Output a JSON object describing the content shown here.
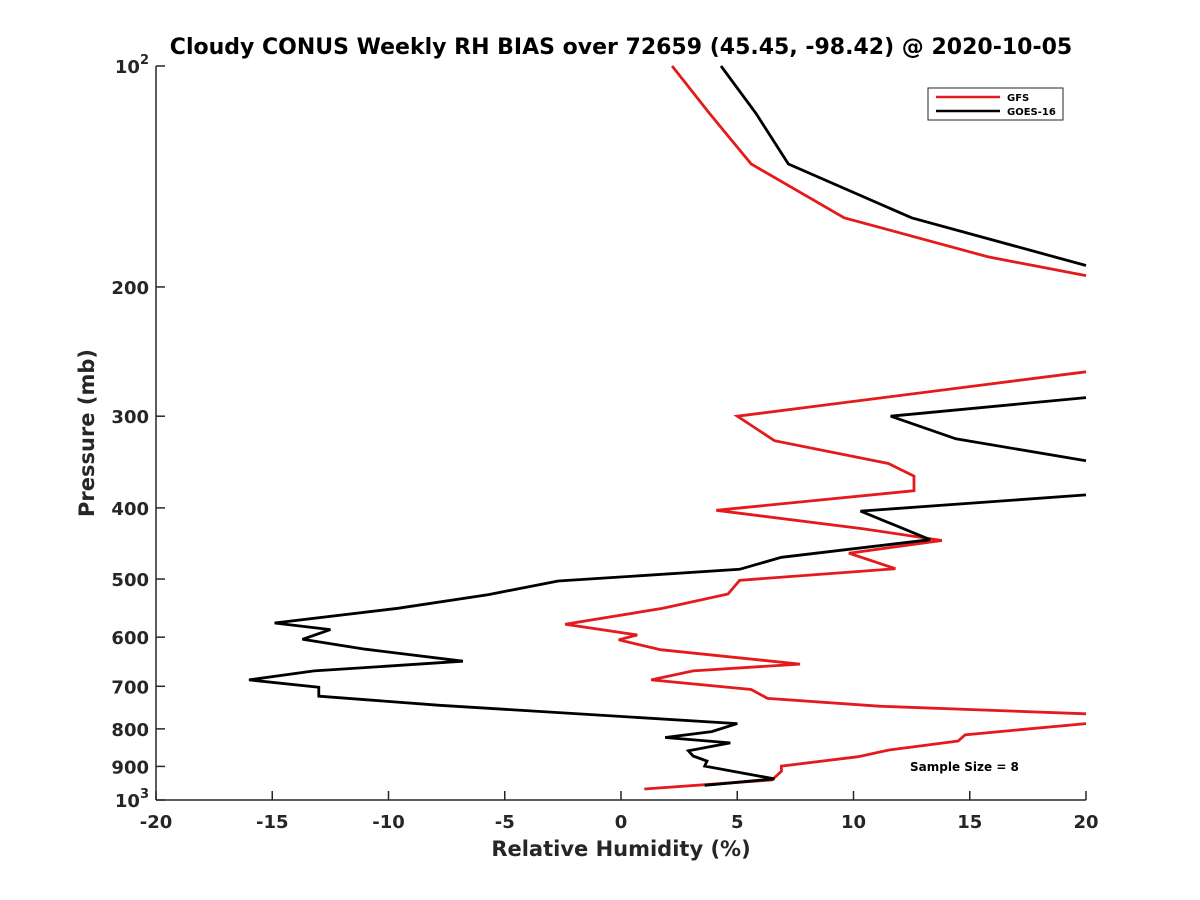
{
  "chart_data": {
    "type": "line",
    "title": "Cloudy CONUS Weekly RH BIAS over 72659 (45.45, -98.42) @ 2020-10-05",
    "xlabel": "Relative Humidity (%)",
    "ylabel": "Pressure (mb)",
    "xlim": [
      -20,
      20
    ],
    "ylim": [
      100,
      1000
    ],
    "y_scale": "log",
    "y_reversed": true,
    "grid": false,
    "legend_position": "top-right",
    "x_ticks": [
      -20,
      -15,
      -10,
      -5,
      0,
      5,
      10,
      15,
      20
    ],
    "x_tick_labels": [
      "-20",
      "-15",
      "-10",
      "-5",
      "0",
      "5",
      "10",
      "15",
      "20"
    ],
    "y_ticks": [
      {
        "value": 100,
        "base": "10",
        "exp": "2"
      },
      {
        "value": 200,
        "base": "200",
        "exp": ""
      },
      {
        "value": 300,
        "base": "300",
        "exp": ""
      },
      {
        "value": 400,
        "base": "400",
        "exp": ""
      },
      {
        "value": 500,
        "base": "500",
        "exp": ""
      },
      {
        "value": 600,
        "base": "600",
        "exp": ""
      },
      {
        "value": 700,
        "base": "700",
        "exp": ""
      },
      {
        "value": 800,
        "base": "800",
        "exp": ""
      },
      {
        "value": 900,
        "base": "900",
        "exp": ""
      },
      {
        "value": 1000,
        "base": "10",
        "exp": "3"
      }
    ],
    "annotation": "Sample Size = 8",
    "series": [
      {
        "name": "GFS",
        "color": "#e41a1c",
        "points": [
          [
            2.2,
            100
          ],
          [
            3.8,
            116
          ],
          [
            5.6,
            136
          ],
          [
            9.6,
            161
          ],
          [
            15.8,
            182
          ],
          [
            20,
            193
          ],
          [
            null,
            null
          ],
          [
            20,
            261
          ],
          [
            5.0,
            300
          ],
          [
            6.6,
            324
          ],
          [
            11.5,
            348
          ],
          [
            12.6,
            362
          ],
          [
            12.6,
            379
          ],
          [
            4.1,
            403
          ],
          [
            10.4,
            427
          ],
          [
            13.8,
            443
          ],
          [
            9.8,
            461
          ],
          [
            11.8,
            484
          ],
          [
            5.1,
            502
          ],
          [
            4.6,
            524
          ],
          [
            1.8,
            548
          ],
          [
            -2.4,
            576
          ],
          [
            0.7,
            596
          ],
          [
            -0.1,
            605
          ],
          [
            1.7,
            624
          ],
          [
            7.7,
            653
          ],
          [
            3.1,
            667
          ],
          [
            1.3,
            686
          ],
          [
            5.6,
            707
          ],
          [
            6.3,
            727
          ],
          [
            11.1,
            745
          ],
          [
            20,
            763
          ],
          [
            null,
            null
          ],
          [
            20,
            787
          ],
          [
            14.8,
            815
          ],
          [
            14.5,
            831
          ],
          [
            11.5,
            855
          ],
          [
            10.2,
            873
          ],
          [
            6.9,
            899
          ],
          [
            6.9,
            914
          ],
          [
            6.5,
            939
          ],
          [
            1.0,
            966
          ]
        ]
      },
      {
        "name": "GOES-16",
        "color": "#000000",
        "points": [
          [
            4.3,
            100
          ],
          [
            5.8,
            116
          ],
          [
            7.2,
            136
          ],
          [
            12.5,
            161
          ],
          [
            20,
            187
          ],
          [
            null,
            null
          ],
          [
            20,
            283
          ],
          [
            11.6,
            300
          ],
          [
            14.4,
            322
          ],
          [
            20,
            345
          ],
          [
            null,
            null
          ],
          [
            20,
            384
          ],
          [
            10.3,
            404
          ],
          [
            13.3,
            442
          ],
          [
            6.9,
            467
          ],
          [
            5.1,
            485
          ],
          [
            -2.7,
            503
          ],
          [
            -5.7,
            525
          ],
          [
            -9.6,
            548
          ],
          [
            -14.9,
            574
          ],
          [
            -12.5,
            586
          ],
          [
            -13.7,
            604
          ],
          [
            -11.0,
            623
          ],
          [
            -6.8,
            647
          ],
          [
            -13.2,
            667
          ],
          [
            -16.0,
            686
          ],
          [
            -13.0,
            702
          ],
          [
            -13.0,
            722
          ],
          [
            -7.8,
            743
          ],
          [
            5.0,
            787
          ],
          [
            3.9,
            807
          ],
          [
            1.9,
            822
          ],
          [
            4.7,
            836
          ],
          [
            2.9,
            857
          ],
          [
            3.1,
            871
          ],
          [
            3.7,
            885
          ],
          [
            3.6,
            899
          ],
          [
            6.6,
            936
          ],
          [
            3.6,
            955
          ]
        ]
      }
    ]
  }
}
